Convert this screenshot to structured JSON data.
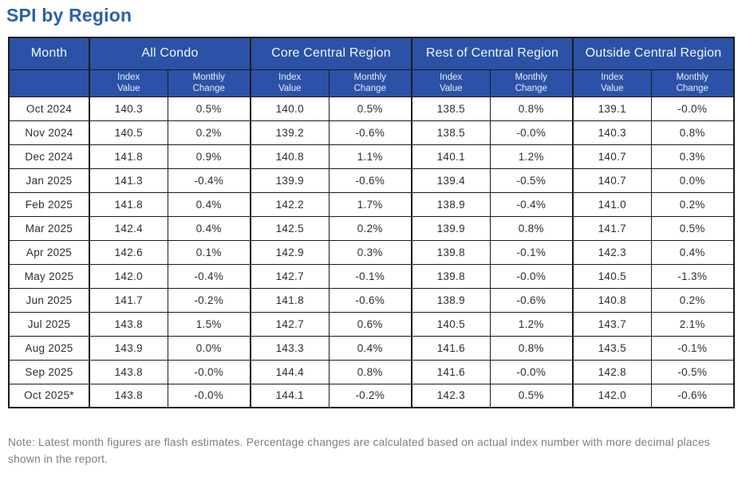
{
  "title": "SPI by Region",
  "header": {
    "month": "Month",
    "groups": [
      "All Condo",
      "Core Central Region",
      "Rest of Central Region",
      "Outside Central Region"
    ],
    "index_value": "Index\nValue",
    "monthly_change": "Monthly\nChange"
  },
  "chart_data": {
    "type": "table",
    "title": "SPI by Region",
    "month_column": "Month",
    "column_groups": [
      "All Condo",
      "Core Central Region",
      "Rest of Central Region",
      "Outside Central Region"
    ],
    "sub_columns": [
      "Index Value",
      "Monthly Change"
    ],
    "rows": [
      {
        "month": "Oct 2024",
        "values": [
          "140.3",
          "0.5%",
          "140.0",
          "0.5%",
          "138.5",
          "0.8%",
          "139.1",
          "-0.0%"
        ]
      },
      {
        "month": "Nov 2024",
        "values": [
          "140.5",
          "0.2%",
          "139.2",
          "-0.6%",
          "138.5",
          "-0.0%",
          "140.3",
          "0.8%"
        ]
      },
      {
        "month": "Dec 2024",
        "values": [
          "141.8",
          "0.9%",
          "140.8",
          "1.1%",
          "140.1",
          "1.2%",
          "140.7",
          "0.3%"
        ]
      },
      {
        "month": "Jan 2025",
        "values": [
          "141.3",
          "-0.4%",
          "139.9",
          "-0.6%",
          "139.4",
          "-0.5%",
          "140.7",
          "0.0%"
        ]
      },
      {
        "month": "Feb 2025",
        "values": [
          "141.8",
          "0.4%",
          "142.2",
          "1.7%",
          "138.9",
          "-0.4%",
          "141.0",
          "0.2%"
        ]
      },
      {
        "month": "Mar 2025",
        "values": [
          "142.4",
          "0.4%",
          "142.5",
          "0.2%",
          "139.9",
          "0.8%",
          "141.7",
          "0.5%"
        ]
      },
      {
        "month": "Apr 2025",
        "values": [
          "142.6",
          "0.1%",
          "142.9",
          "0.3%",
          "139.8",
          "-0.1%",
          "142.3",
          "0.4%"
        ]
      },
      {
        "month": "May 2025",
        "values": [
          "142.0",
          "-0.4%",
          "142.7",
          "-0.1%",
          "139.8",
          "-0.0%",
          "140.5",
          "-1.3%"
        ]
      },
      {
        "month": "Jun 2025",
        "values": [
          "141.7",
          "-0.2%",
          "141.8",
          "-0.6%",
          "138.9",
          "-0.6%",
          "140.8",
          "0.2%"
        ]
      },
      {
        "month": "Jul 2025",
        "values": [
          "143.8",
          "1.5%",
          "142.7",
          "0.6%",
          "140.5",
          "1.2%",
          "143.7",
          "2.1%"
        ]
      },
      {
        "month": "Aug 2025",
        "values": [
          "143.9",
          "0.0%",
          "143.3",
          "0.4%",
          "141.6",
          "0.8%",
          "143.5",
          "-0.1%"
        ]
      },
      {
        "month": "Sep 2025",
        "values": [
          "143.8",
          "-0.0%",
          "144.4",
          "0.8%",
          "141.6",
          "-0.0%",
          "142.8",
          "-0.5%"
        ]
      },
      {
        "month": "Oct 2025*",
        "values": [
          "143.8",
          "-0.0%",
          "144.1",
          "-0.2%",
          "142.3",
          "0.5%",
          "142.0",
          "-0.6%"
        ]
      }
    ]
  },
  "note": "Note: Latest month figures are flash estimates. Percentage changes are calculated based on actual index number with more decimal places shown in the report.",
  "colors": {
    "header_bg": "#2B52A6",
    "title_text": "#2D5FAD",
    "grid_border": "#1B1B1B",
    "body_text": "#2E2E2E",
    "note_text": "#7E7E7E"
  }
}
